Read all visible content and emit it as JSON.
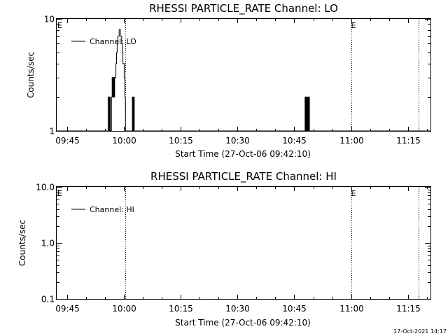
{
  "footer": {
    "timestamp": "17-Oct-2021 14:17"
  },
  "chart_data": [
    {
      "type": "line",
      "title": "RHESSI PARTICLE_RATE Channel: LO",
      "xlabel": "Start Time (27-Oct-06 09:42:10)",
      "ylabel": "Counts/sec",
      "yscale": "log",
      "xlim": [
        "09:42:10",
        "11:21:00"
      ],
      "ylim": [
        1,
        10
      ],
      "x_ticks": [
        "09:45",
        "10:00",
        "10:15",
        "10:30",
        "10:45",
        "11:00",
        "11:15"
      ],
      "y_ticks": [
        "1",
        "10"
      ],
      "legend": {
        "position": "top-left",
        "entries": [
          "Channel: LO"
        ]
      },
      "markers": [
        {
          "label": "E",
          "time": "09:42:10"
        },
        {
          "label": "",
          "time": "10:00:15"
        },
        {
          "label": "E",
          "time": "11:00:10"
        },
        {
          "label": "",
          "time": "11:17:50"
        }
      ],
      "series": [
        {
          "name": "Channel: LO",
          "x": [
            "09:42:10",
            "09:55:30",
            "09:55:45",
            "09:56:00",
            "09:56:10",
            "09:56:20",
            "09:56:30",
            "09:56:40",
            "09:56:50",
            "09:57:00",
            "09:57:10",
            "09:57:20",
            "09:57:30",
            "09:57:40",
            "09:57:50",
            "09:58:00",
            "09:58:10",
            "09:58:20",
            "09:58:30",
            "09:58:40",
            "09:58:50",
            "09:59:00",
            "09:59:10",
            "09:59:20",
            "09:59:30",
            "09:59:40",
            "09:59:50",
            "10:00:00",
            "10:00:10",
            "10:00:20",
            "10:00:30",
            "10:00:40",
            "10:00:50",
            "10:01:00",
            "10:01:10",
            "10:01:20",
            "10:01:30",
            "10:01:40",
            "10:01:50",
            "10:02:00",
            "10:02:10",
            "10:02:20",
            "10:02:30",
            "10:02:40",
            "10:02:50",
            "10:03:00",
            "10:47:40",
            "10:47:50",
            "10:48:00",
            "10:48:10",
            "10:48:20",
            "10:48:30",
            "10:48:40",
            "10:48:50",
            "10:49:00",
            "11:21:00"
          ],
          "y": [
            1,
            1,
            2,
            1,
            2,
            1,
            1,
            2,
            3,
            2,
            3,
            2,
            3,
            3,
            4,
            5,
            6,
            7,
            7,
            8,
            8,
            7,
            7,
            6,
            5,
            4,
            4,
            3,
            2,
            1,
            1,
            1,
            1,
            1,
            1,
            1,
            1,
            1,
            1,
            1,
            2,
            1,
            2,
            1,
            1,
            1,
            1,
            2,
            1,
            2,
            1,
            2,
            1,
            2,
            1,
            1
          ]
        }
      ]
    },
    {
      "type": "line",
      "title": "RHESSI PARTICLE_RATE Channel: HI",
      "xlabel": "Start Time (27-Oct-06 09:42:10)",
      "ylabel": "Counts/sec",
      "yscale": "log",
      "xlim": [
        "09:42:10",
        "11:21:00"
      ],
      "ylim": [
        0.1,
        10
      ],
      "x_ticks": [
        "09:45",
        "10:00",
        "10:15",
        "10:30",
        "10:45",
        "11:00",
        "11:15"
      ],
      "y_ticks": [
        "0.1",
        "1.0",
        "10.0"
      ],
      "legend": {
        "position": "top-left",
        "entries": [
          "Channel: HI"
        ]
      },
      "markers": [
        {
          "label": "E",
          "time": "09:42:10"
        },
        {
          "label": "",
          "time": "10:00:15"
        },
        {
          "label": "E",
          "time": "11:00:10"
        },
        {
          "label": "",
          "time": "11:17:50"
        }
      ],
      "series": [
        {
          "name": "Channel: HI",
          "x": [],
          "y": []
        }
      ]
    }
  ]
}
